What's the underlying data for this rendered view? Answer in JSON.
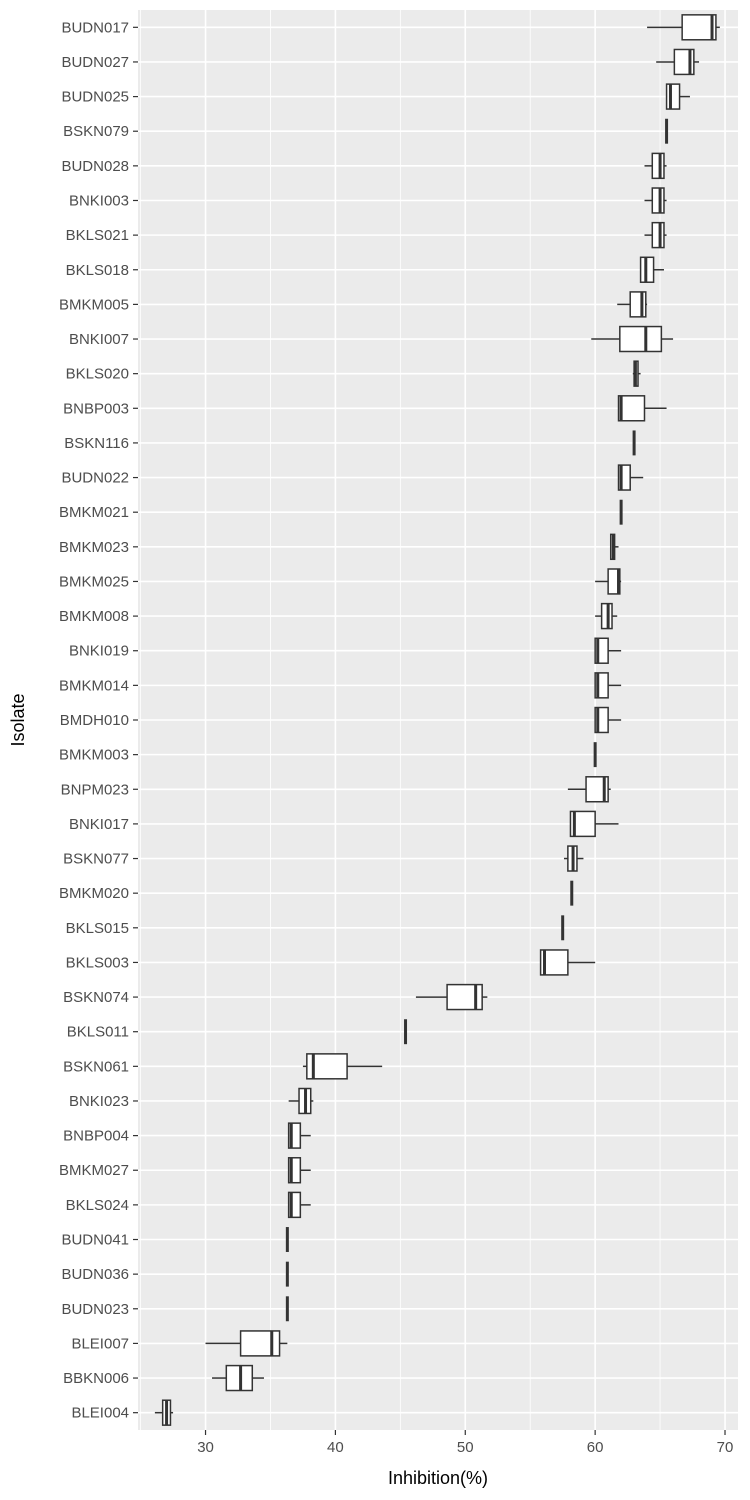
{
  "chart_data": {
    "type": "boxplot",
    "orientation": "horizontal",
    "xlabel": "Inhibition(%)",
    "ylabel": "Isolate",
    "xlim": [
      24.8,
      71.0
    ],
    "x_ticks": [
      30,
      40,
      50,
      60,
      70
    ],
    "grid": true,
    "colors": {
      "panel": "#EBEBEB",
      "grid": "#FFFFFF",
      "box_fill": "#FFFFFF",
      "box_stroke": "#333333",
      "tick_text": "#4D4D4D"
    },
    "categories": [
      "BUDN017",
      "BUDN027",
      "BUDN025",
      "BSKN079",
      "BUDN028",
      "BNKI003",
      "BKLS021",
      "BKLS018",
      "BMKM005",
      "BNKI007",
      "BKLS020",
      "BNBP003",
      "BSKN116",
      "BUDN022",
      "BMKM021",
      "BMKM023",
      "BMKM025",
      "BMKM008",
      "BNKI019",
      "BMKM014",
      "BMDH010",
      "BMKM003",
      "BNPM023",
      "BNKI017",
      "BSKN077",
      "BMKM020",
      "BKLS015",
      "BKLS003",
      "BSKN074",
      "BKLS011",
      "BSKN061",
      "BNKI023",
      "BNBP004",
      "BMKM027",
      "BKLS024",
      "BUDN041",
      "BUDN036",
      "BUDN023",
      "BLEI007",
      "BBKN006",
      "BLEI004"
    ],
    "boxes": [
      {
        "min": 64.0,
        "q1": 66.7,
        "median": 69.0,
        "q3": 69.3,
        "max": 69.6
      },
      {
        "min": 64.7,
        "q1": 66.1,
        "median": 67.3,
        "q3": 67.6,
        "max": 68.0
      },
      {
        "min": 65.5,
        "q1": 65.5,
        "median": 65.8,
        "q3": 66.5,
        "max": 67.3
      },
      {
        "min": 65.5,
        "q1": 65.5,
        "median": 65.5,
        "q3": 65.5,
        "max": 65.5
      },
      {
        "min": 63.8,
        "q1": 64.4,
        "median": 65.0,
        "q3": 65.3,
        "max": 65.5
      },
      {
        "min": 63.8,
        "q1": 64.4,
        "median": 65.0,
        "q3": 65.3,
        "max": 65.5
      },
      {
        "min": 63.8,
        "q1": 64.4,
        "median": 65.0,
        "q3": 65.3,
        "max": 65.5
      },
      {
        "min": 63.5,
        "q1": 63.5,
        "median": 63.9,
        "q3": 64.5,
        "max": 65.3
      },
      {
        "min": 61.7,
        "q1": 62.7,
        "median": 63.6,
        "q3": 63.9,
        "max": 64.0
      },
      {
        "min": 59.7,
        "q1": 61.9,
        "median": 63.9,
        "q3": 65.1,
        "max": 66.0
      },
      {
        "min": 62.9,
        "q1": 63.0,
        "median": 63.1,
        "q3": 63.3,
        "max": 63.5
      },
      {
        "min": 61.8,
        "q1": 61.8,
        "median": 62.0,
        "q3": 63.8,
        "max": 65.5
      },
      {
        "min": 63.0,
        "q1": 63.0,
        "median": 63.0,
        "q3": 63.0,
        "max": 63.0
      },
      {
        "min": 61.8,
        "q1": 61.8,
        "median": 62.0,
        "q3": 62.7,
        "max": 63.7
      },
      {
        "min": 62.0,
        "q1": 62.0,
        "median": 62.0,
        "q3": 62.0,
        "max": 62.0
      },
      {
        "min": 61.2,
        "q1": 61.2,
        "median": 61.4,
        "q3": 61.5,
        "max": 61.8
      },
      {
        "min": 60.0,
        "q1": 61.0,
        "median": 61.8,
        "q3": 61.9,
        "max": 62.0
      },
      {
        "min": 60.0,
        "q1": 60.5,
        "median": 61.0,
        "q3": 61.3,
        "max": 61.7
      },
      {
        "min": 60.0,
        "q1": 60.0,
        "median": 60.2,
        "q3": 61.0,
        "max": 62.0
      },
      {
        "min": 60.0,
        "q1": 60.0,
        "median": 60.2,
        "q3": 61.0,
        "max": 62.0
      },
      {
        "min": 60.0,
        "q1": 60.0,
        "median": 60.2,
        "q3": 61.0,
        "max": 62.0
      },
      {
        "min": 60.0,
        "q1": 60.0,
        "median": 60.0,
        "q3": 60.0,
        "max": 60.0
      },
      {
        "min": 57.9,
        "q1": 59.3,
        "median": 60.7,
        "q3": 61.0,
        "max": 61.2
      },
      {
        "min": 58.1,
        "q1": 58.1,
        "median": 58.4,
        "q3": 60.0,
        "max": 61.8
      },
      {
        "min": 57.6,
        "q1": 57.9,
        "median": 58.3,
        "q3": 58.6,
        "max": 59.1
      },
      {
        "min": 58.2,
        "q1": 58.2,
        "median": 58.2,
        "q3": 58.2,
        "max": 58.2
      },
      {
        "min": 57.5,
        "q1": 57.5,
        "median": 57.5,
        "q3": 57.5,
        "max": 57.5
      },
      {
        "min": 55.8,
        "q1": 55.8,
        "median": 56.1,
        "q3": 57.9,
        "max": 60.0
      },
      {
        "min": 46.2,
        "q1": 48.6,
        "median": 50.8,
        "q3": 51.3,
        "max": 51.7
      },
      {
        "min": 45.4,
        "q1": 45.4,
        "median": 45.4,
        "q3": 45.4,
        "max": 45.4
      },
      {
        "min": 37.5,
        "q1": 37.8,
        "median": 38.3,
        "q3": 40.9,
        "max": 43.6
      },
      {
        "min": 36.4,
        "q1": 37.2,
        "median": 37.7,
        "q3": 38.1,
        "max": 38.3
      },
      {
        "min": 36.4,
        "q1": 36.4,
        "median": 36.6,
        "q3": 37.3,
        "max": 38.1
      },
      {
        "min": 36.4,
        "q1": 36.4,
        "median": 36.6,
        "q3": 37.3,
        "max": 38.1
      },
      {
        "min": 36.4,
        "q1": 36.4,
        "median": 36.6,
        "q3": 37.3,
        "max": 38.1
      },
      {
        "min": 36.3,
        "q1": 36.3,
        "median": 36.3,
        "q3": 36.3,
        "max": 36.3
      },
      {
        "min": 36.3,
        "q1": 36.3,
        "median": 36.3,
        "q3": 36.3,
        "max": 36.3
      },
      {
        "min": 36.3,
        "q1": 36.3,
        "median": 36.3,
        "q3": 36.3,
        "max": 36.3
      },
      {
        "min": 30.0,
        "q1": 32.7,
        "median": 35.1,
        "q3": 35.7,
        "max": 36.3
      },
      {
        "min": 30.5,
        "q1": 31.6,
        "median": 32.7,
        "q3": 33.6,
        "max": 34.5
      },
      {
        "min": 26.1,
        "q1": 26.7,
        "median": 27.0,
        "q3": 27.3,
        "max": 27.5
      }
    ]
  }
}
